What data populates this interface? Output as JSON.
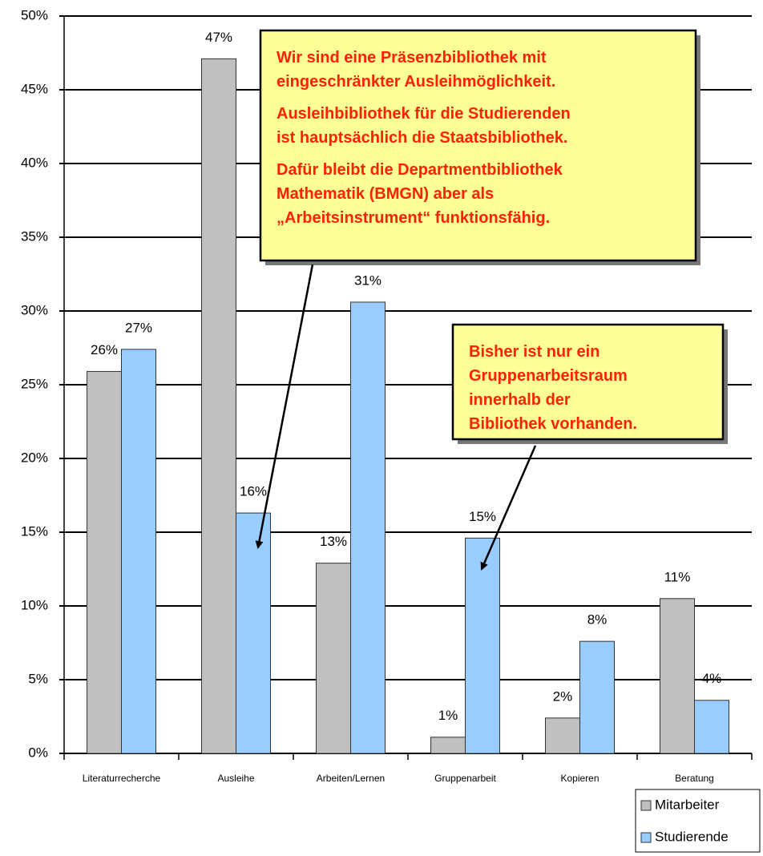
{
  "chart_data": {
    "type": "bar",
    "categories": [
      "Literaturrecherche",
      "Ausleihe",
      "Arbeiten/Lernen",
      "Gruppenarbeit",
      "Kopieren",
      "Beratung"
    ],
    "series": [
      {
        "name": "Mitarbeiter",
        "color": "#c0c0c0",
        "values": [
          25.9,
          47.1,
          12.9,
          1.1,
          2.4,
          10.5
        ],
        "value_labels": [
          "26%",
          "47%",
          "13%",
          "1%",
          "2%",
          "11%"
        ]
      },
      {
        "name": "Studierende",
        "color": "#99ccff",
        "values": [
          27.4,
          16.3,
          30.6,
          14.6,
          7.6,
          3.6
        ],
        "value_labels": [
          "27%",
          "16%",
          "31%",
          "15%",
          "8%",
          "4%"
        ]
      }
    ],
    "ylim": [
      0,
      50
    ],
    "yticks": [
      {
        "value": 0,
        "label": "0%"
      },
      {
        "value": 5,
        "label": "5%"
      },
      {
        "value": 10,
        "label": "10%"
      },
      {
        "value": 15,
        "label": "15%"
      },
      {
        "value": 20,
        "label": "20%"
      },
      {
        "value": 25,
        "label": "25%"
      },
      {
        "value": 30,
        "label": "30%"
      },
      {
        "value": 35,
        "label": "35%"
      },
      {
        "value": 40,
        "label": "40%"
      },
      {
        "value": 45,
        "label": "45%"
      },
      {
        "value": 50,
        "label": "50%"
      }
    ],
    "grid": true,
    "legend": "bottom-right",
    "annotations": [
      {
        "lines": [
          "Wir sind eine Präsenzbibliothek mit",
          "eingeschränkter Ausleihmöglichkeit.",
          "Ausleihbibliothek für die Studierenden",
          "ist hauptsächlich die Staatsbibliothek.",
          "Dafür bleibt die Departmentbibliothek",
          "Mathematik (BMGN) aber als",
          "„Arbeitsinstrument“ funktionsfähig."
        ]
      },
      {
        "lines": [
          "Bisher ist nur ein",
          "Gruppenarbeitsraum",
          "innerhalb der",
          "Bibliothek vorhanden."
        ]
      }
    ]
  }
}
